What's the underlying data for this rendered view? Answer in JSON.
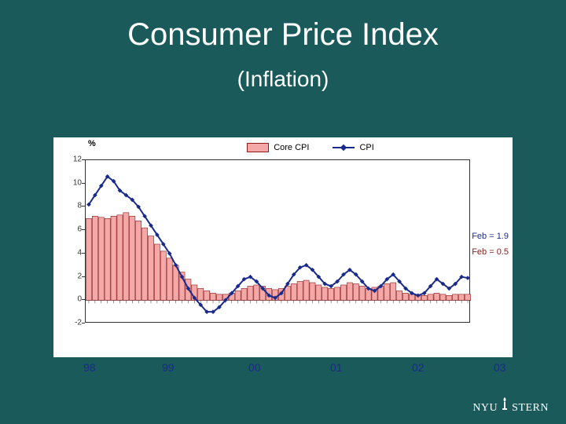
{
  "title": "Consumer Price Index",
  "subtitle": "(Inflation)",
  "chart": {
    "type": "bar+line",
    "background_color": "#ffffff",
    "border_color": "#333333",
    "y_axis_label": "%",
    "ylim": [
      -2,
      12
    ],
    "yticks": [
      -2,
      0,
      2,
      4,
      6,
      8,
      10,
      12
    ],
    "x_years": [
      "98",
      "99",
      "00",
      "01",
      "02",
      "03"
    ],
    "legend": [
      {
        "key": "core_cpi",
        "label": "Core CPI",
        "type": "bar",
        "color": "#f4a8a8",
        "border": "#8b1a1a"
      },
      {
        "key": "cpi",
        "label": "CPI",
        "type": "line",
        "color": "#1a2a8b",
        "marker": "diamond"
      }
    ],
    "annotations": [
      {
        "text": "Feb = 1.9",
        "color": "#1a2a8b",
        "y_approx": 4.0
      },
      {
        "text": "Feb = 0.5",
        "color": "#8b1a1a",
        "y_approx": 2.8
      }
    ],
    "bar_series": {
      "label": "Core CPI",
      "fill": "#f4a8a8",
      "stroke": "#8b1a1a",
      "stroke_width": 0.6,
      "values": [
        7.0,
        7.2,
        7.1,
        7.0,
        7.2,
        7.3,
        7.5,
        7.2,
        6.8,
        6.2,
        5.5,
        4.8,
        4.2,
        3.6,
        3.0,
        2.4,
        1.8,
        1.3,
        1.0,
        0.8,
        0.6,
        0.5,
        0.5,
        0.6,
        0.8,
        1.0,
        1.2,
        1.3,
        1.2,
        1.0,
        0.9,
        1.0,
        1.2,
        1.4,
        1.6,
        1.7,
        1.5,
        1.3,
        1.1,
        1.0,
        1.1,
        1.3,
        1.5,
        1.4,
        1.2,
        1.0,
        1.1,
        1.2,
        1.4,
        1.5,
        0.8,
        0.6,
        0.5,
        0.4,
        0.4,
        0.5,
        0.6,
        0.5,
        0.4,
        0.5,
        0.5,
        0.5
      ]
    },
    "line_series": {
      "label": "CPI",
      "stroke": "#1a2a8b",
      "stroke_width": 2,
      "marker_size": 4,
      "values": [
        8.2,
        9.0,
        9.8,
        10.6,
        10.2,
        9.4,
        9.0,
        8.6,
        8.0,
        7.2,
        6.4,
        5.6,
        4.8,
        4.0,
        3.0,
        2.0,
        1.0,
        0.2,
        -0.4,
        -1.0,
        -1.0,
        -0.6,
        0.0,
        0.6,
        1.2,
        1.8,
        2.0,
        1.6,
        1.0,
        0.4,
        0.2,
        0.6,
        1.4,
        2.2,
        2.8,
        3.0,
        2.6,
        2.0,
        1.4,
        1.2,
        1.6,
        2.2,
        2.6,
        2.2,
        1.6,
        1.0,
        0.8,
        1.2,
        1.8,
        2.2,
        1.6,
        1.0,
        0.6,
        0.4,
        0.6,
        1.2,
        1.8,
        1.4,
        1.0,
        1.4,
        2.0,
        1.9
      ]
    }
  },
  "logo": {
    "nyu": "NYU",
    "stern": "STERN"
  }
}
